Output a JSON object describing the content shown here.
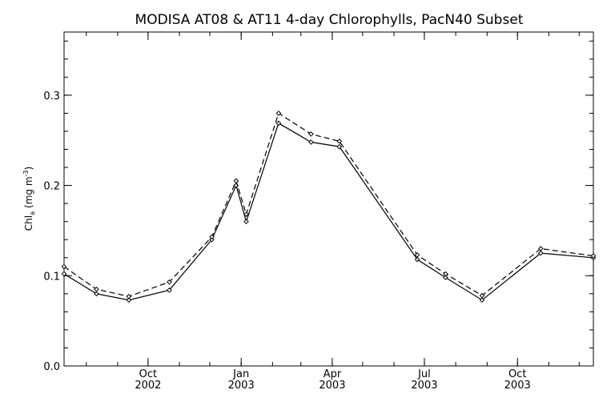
{
  "chart_data": {
    "type": "line",
    "title": "MODISA AT08 & AT11 4-day Chlorophylls, PacN40 Subset",
    "xlabel": "",
    "ylabel": "Chl",
    "ylabel_subscript": "a",
    "ylabel_unit": "(mg m",
    "ylabel_unit_exp": "-3",
    "ylabel_unit_close": ")",
    "ylim": [
      0,
      0.37
    ],
    "xlim": [
      "2002-07-10",
      "2003-12-15"
    ],
    "y_ticks": [
      {
        "value": 0.0,
        "label": "0.0"
      },
      {
        "value": 0.1,
        "label": "0.1"
      },
      {
        "value": 0.2,
        "label": "0.2"
      },
      {
        "value": 0.3,
        "label": "0.3"
      }
    ],
    "x_ticks": [
      {
        "date": "2002-10-01",
        "month": "Oct",
        "year": "2002"
      },
      {
        "date": "2003-01-01",
        "month": "Jan",
        "year": "2003"
      },
      {
        "date": "2003-04-01",
        "month": "Apr",
        "year": "2003"
      },
      {
        "date": "2003-07-01",
        "month": "Jul",
        "year": "2003"
      },
      {
        "date": "2003-10-01",
        "month": "Oct",
        "year": "2003"
      }
    ],
    "series": [
      {
        "style": "solid",
        "points": [
          {
            "x": "2002-07-10",
            "y": 0.102
          },
          {
            "x": "2002-08-11",
            "y": 0.08
          },
          {
            "x": "2002-09-12",
            "y": 0.073
          },
          {
            "x": "2002-10-22",
            "y": 0.084
          },
          {
            "x": "2002-12-03",
            "y": 0.14
          },
          {
            "x": "2002-12-27",
            "y": 0.2
          },
          {
            "x": "2003-01-06",
            "y": 0.16
          },
          {
            "x": "2003-02-07",
            "y": 0.269
          },
          {
            "x": "2003-03-11",
            "y": 0.248
          },
          {
            "x": "2003-04-08",
            "y": 0.243
          },
          {
            "x": "2003-06-24",
            "y": 0.118
          },
          {
            "x": "2003-07-22",
            "y": 0.098
          },
          {
            "x": "2003-08-27",
            "y": 0.073
          },
          {
            "x": "2003-10-24",
            "y": 0.125
          },
          {
            "x": "2003-12-15",
            "y": 0.12
          }
        ]
      },
      {
        "style": "dashed",
        "points": [
          {
            "x": "2002-07-10",
            "y": 0.11
          },
          {
            "x": "2002-08-11",
            "y": 0.085
          },
          {
            "x": "2002-09-12",
            "y": 0.077
          },
          {
            "x": "2002-10-22",
            "y": 0.093
          },
          {
            "x": "2002-12-03",
            "y": 0.143
          },
          {
            "x": "2002-12-27",
            "y": 0.205
          },
          {
            "x": "2003-01-06",
            "y": 0.168
          },
          {
            "x": "2003-02-07",
            "y": 0.28
          },
          {
            "x": "2003-03-11",
            "y": 0.257
          },
          {
            "x": "2003-04-08",
            "y": 0.249
          },
          {
            "x": "2003-06-24",
            "y": 0.123
          },
          {
            "x": "2003-07-22",
            "y": 0.102
          },
          {
            "x": "2003-08-27",
            "y": 0.078
          },
          {
            "x": "2003-10-24",
            "y": 0.13
          },
          {
            "x": "2003-12-15",
            "y": 0.122
          }
        ]
      }
    ],
    "grid": false,
    "legend": "none"
  }
}
